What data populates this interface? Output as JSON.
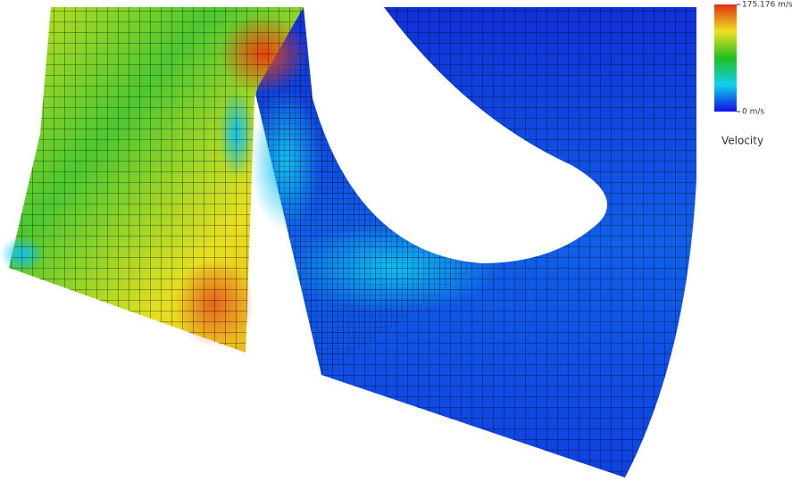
{
  "legend": {
    "title": "Velocity",
    "ticks": [
      {
        "value": 175.176,
        "label": "175.176 m/s"
      },
      {
        "value": 0,
        "label": "0 m/s"
      }
    ],
    "range": [
      0,
      175.176
    ]
  }
}
